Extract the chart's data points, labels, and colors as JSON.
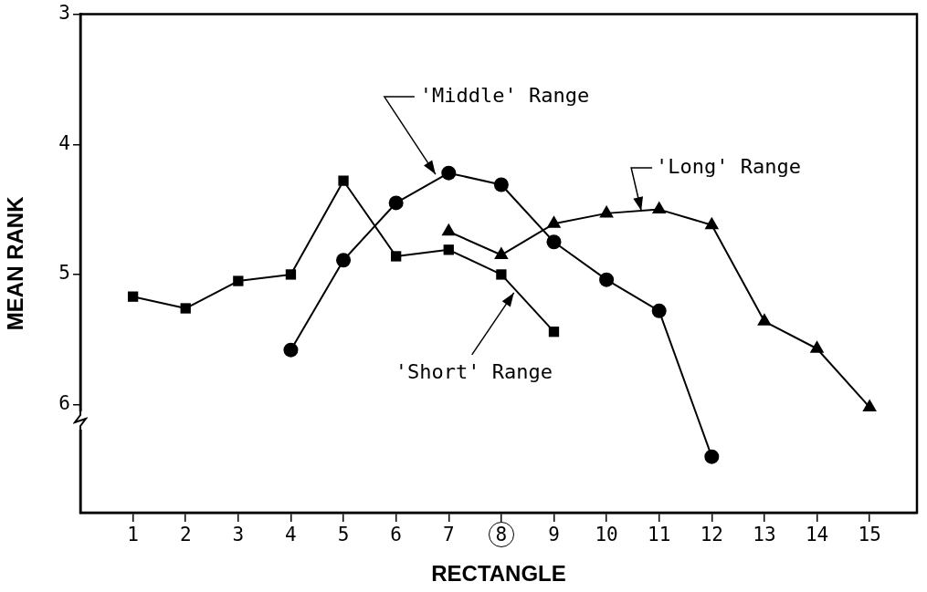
{
  "chart_data": {
    "type": "line",
    "xlabel": "RECTANGLE",
    "ylabel": "MEAN RANK",
    "xlim": [
      0,
      15.9
    ],
    "xticks": [
      1,
      2,
      3,
      4,
      5,
      6,
      7,
      8,
      9,
      10,
      11,
      12,
      13,
      14,
      15
    ],
    "ylim": [
      6.83,
      3
    ],
    "yticks": [
      3,
      4,
      5,
      6
    ],
    "grid": false,
    "legend": false,
    "series": [
      {
        "color": "#000000",
        "marker": "square",
        "x": [
          1,
          2,
          3,
          4,
          5,
          6,
          7,
          8,
          9
        ],
        "values": [
          5.17,
          5.26,
          5.05,
          5.0,
          4.28,
          4.86,
          4.81,
          5.0,
          5.44
        ]
      },
      {
        "color": "#000000",
        "marker": "circle",
        "x": [
          4,
          5,
          6,
          7,
          8,
          9,
          10,
          11,
          12
        ],
        "values": [
          5.58,
          4.89,
          4.45,
          4.22,
          4.31,
          4.75,
          5.04,
          5.28,
          6.4
        ]
      },
      {
        "color": "#000000",
        "marker": "triangle",
        "x": [
          7,
          8,
          9,
          10,
          11,
          12,
          13,
          14,
          15
        ],
        "values": [
          4.67,
          4.85,
          4.61,
          4.53,
          4.5,
          4.62,
          5.36,
          5.57,
          6.02
        ]
      }
    ],
    "annotations": [
      {
        "text": "'Middle' Range",
        "x": 6.75,
        "y": 4.23
      },
      {
        "text": "'Long' Range",
        "x": 10.66,
        "y": 4.51
      },
      {
        "text": "'Short' Range",
        "x": 8.24,
        "y": 5.14
      }
    ]
  }
}
